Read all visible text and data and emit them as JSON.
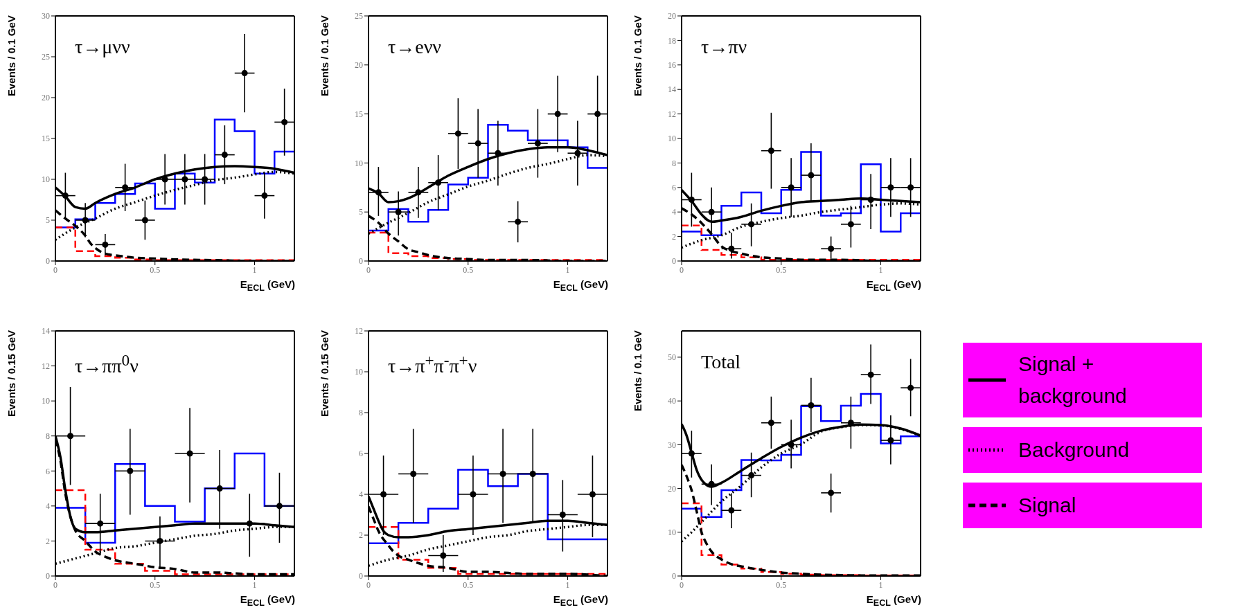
{
  "chart_data": [
    {
      "type": "histogram",
      "ylabel": "Events / 0.1 GeV",
      "xlabel": "E$_{ECL}$ (GeV)",
      "annotations": [
        "τ→μνν"
      ],
      "xlim": [
        0,
        1.2
      ],
      "xticks": [
        0,
        0.5,
        1
      ],
      "ylim": [
        0,
        30
      ],
      "yticks": [
        0,
        5,
        10,
        15,
        20,
        25,
        30
      ],
      "series": [
        {
          "color": "#0000ff",
          "bins": [
            0,
            0.1,
            0.2,
            0.3,
            0.4,
            0.5,
            0.6,
            0.7,
            0.8,
            0.9,
            1.0,
            1.1,
            1.2
          ],
          "values": [
            4.1,
            5.1,
            7.1,
            8.2,
            9.5,
            6.4,
            10.7,
            9.6,
            17.3,
            15.9,
            10.7,
            13.4
          ]
        },
        {
          "type": "histogram",
          "color": "#ff0000",
          "line_style": "dashed",
          "bins": [
            0,
            0.1,
            0.2,
            0.3,
            0.4,
            0.5,
            0.6,
            0.7,
            0.8,
            0.9,
            1.0,
            1.1,
            1.2
          ],
          "values": [
            4.1,
            1.2,
            0.6,
            0.4,
            0.2,
            0.1,
            0.1,
            0.1,
            0.1,
            0.1,
            0.1,
            0.1
          ]
        },
        {
          "type": "line",
          "color": "#000000",
          "line_style": "solid",
          "x": [
            0,
            0.05,
            0.1,
            0.15,
            0.2,
            0.3,
            0.4,
            0.5,
            0.6,
            0.7,
            0.8,
            0.9,
            1.0,
            1.1,
            1.2
          ],
          "values": [
            9.0,
            7.9,
            6.6,
            6.4,
            7.1,
            8.2,
            9.0,
            10.0,
            10.7,
            11.2,
            11.5,
            11.6,
            11.5,
            11.3,
            10.8
          ]
        },
        {
          "type": "line",
          "color": "#000000",
          "line_style": "dotted",
          "x": [
            0,
            0.1,
            0.2,
            0.3,
            0.4,
            0.5,
            0.6,
            0.7,
            0.8,
            0.9,
            1.0,
            1.1,
            1.2
          ],
          "values": [
            2.6,
            4.1,
            5.2,
            6.4,
            7.2,
            8.0,
            8.7,
            9.3,
            9.9,
            10.2,
            10.6,
            10.9,
            10.7
          ]
        },
        {
          "type": "line",
          "color": "#000000",
          "line_style": "dashed",
          "x": [
            0,
            0.05,
            0.1,
            0.15,
            0.175,
            0.2,
            0.25,
            0.3,
            0.4,
            0.5,
            0.6,
            0.8,
            1.0,
            1.2
          ],
          "values": [
            6.2,
            5.2,
            4.3,
            3.1,
            2.2,
            1.6,
            0.9,
            0.7,
            0.4,
            0.3,
            0.2,
            0.1,
            0,
            0
          ]
        },
        {
          "type": "scatter",
          "color": "#000000",
          "marker": "circle",
          "x": [
            0.05,
            0.15,
            0.25,
            0.35,
            0.45,
            0.55,
            0.65,
            0.75,
            0.85,
            0.95,
            1.05,
            1.15
          ],
          "values": [
            8,
            5,
            2,
            9,
            5,
            10,
            10,
            10,
            13,
            23,
            8,
            17
          ],
          "errors": [
            [
              5.2,
              10.8
            ],
            [
              2.9,
              7.1
            ],
            [
              0.7,
              3.3
            ],
            [
              6.1,
              11.9
            ],
            [
              2.6,
              7.4
            ],
            [
              6.9,
              13.1
            ],
            [
              6.9,
              13.1
            ],
            [
              6.9,
              13.1
            ],
            [
              9.4,
              16.6
            ],
            [
              18.2,
              27.8
            ],
            [
              5.2,
              10.8
            ],
            [
              12.9,
              21.1
            ]
          ],
          "xerrors": [
            0.05,
            0.05,
            0.05,
            0.05,
            0.05,
            0.05,
            0.05,
            0.05,
            0.05,
            0.05,
            0.05,
            0.05
          ]
        }
      ]
    },
    {
      "type": "histogram",
      "ylabel": "Events / 0.1 GeV",
      "xlabel": "E$_{ECL}$ (GeV)",
      "annotations": [
        "τ→eνν"
      ],
      "xlim": [
        0,
        1.2
      ],
      "xticks": [
        0,
        0.5,
        1
      ],
      "ylim": [
        0,
        25
      ],
      "yticks": [
        0,
        5,
        10,
        15,
        20,
        25
      ],
      "series": [
        {
          "color": "#0000ff",
          "bins": [
            0,
            0.1,
            0.2,
            0.3,
            0.4,
            0.5,
            0.6,
            0.7,
            0.8,
            0.9,
            1.0,
            1.1,
            1.2
          ],
          "values": [
            3.1,
            5.3,
            4.0,
            5.2,
            7.8,
            8.5,
            13.9,
            13.3,
            12.3,
            12.3,
            11.6,
            9.5
          ]
        },
        {
          "type": "histogram",
          "color": "#ff0000",
          "line_style": "dashed",
          "bins": [
            0,
            0.1,
            0.2,
            0.3,
            0.4,
            0.5,
            0.6,
            0.7,
            0.8,
            0.9,
            1.0,
            1.1,
            1.2
          ],
          "values": [
            2.9,
            0.8,
            0.5,
            0.3,
            0.2,
            0.1,
            0.1,
            0.1,
            0.1,
            0.1,
            0.1,
            0.1
          ]
        },
        {
          "type": "line",
          "color": "#000000",
          "line_style": "solid",
          "x": [
            0,
            0.05,
            0.1,
            0.15,
            0.2,
            0.3,
            0.4,
            0.5,
            0.6,
            0.7,
            0.8,
            0.9,
            1.0,
            1.1,
            1.2
          ],
          "values": [
            7.4,
            6.9,
            6.0,
            6.1,
            6.4,
            7.5,
            8.7,
            9.6,
            10.4,
            11.0,
            11.4,
            11.6,
            11.6,
            11.3,
            10.8
          ]
        },
        {
          "type": "line",
          "color": "#000000",
          "line_style": "dotted",
          "x": [
            0,
            0.1,
            0.2,
            0.3,
            0.4,
            0.5,
            0.6,
            0.7,
            0.8,
            0.9,
            1.0,
            1.1,
            1.2
          ],
          "values": [
            2.8,
            3.9,
            4.9,
            6.0,
            6.8,
            7.6,
            8.2,
            8.9,
            9.5,
            9.9,
            10.4,
            10.8,
            10.7
          ]
        },
        {
          "type": "line",
          "color": "#000000",
          "line_style": "dashed",
          "x": [
            0,
            0.05,
            0.1,
            0.15,
            0.2,
            0.25,
            0.3,
            0.4,
            0.5,
            0.6,
            0.8,
            1.0,
            1.2
          ],
          "values": [
            4.6,
            3.9,
            2.8,
            2.0,
            1.2,
            0.9,
            0.6,
            0.3,
            0.2,
            0.1,
            0.1,
            0,
            0
          ]
        },
        {
          "type": "scatter",
          "color": "#000000",
          "marker": "circle",
          "x": [
            0.05,
            0.15,
            0.25,
            0.35,
            0.45,
            0.55,
            0.65,
            0.75,
            0.85,
            0.95,
            1.05,
            1.15
          ],
          "values": [
            7,
            5,
            7,
            8,
            13,
            12,
            11,
            4,
            12,
            15,
            11,
            15
          ],
          "errors": [
            [
              4.6,
              9.6
            ],
            [
              2.6,
              7.1
            ],
            [
              4.4,
              9.6
            ],
            [
              5.2,
              10.8
            ],
            [
              9.4,
              16.6
            ],
            [
              8.5,
              15.5
            ],
            [
              7.7,
              14.3
            ],
            [
              1.9,
              6.1
            ],
            [
              8.5,
              15.5
            ],
            [
              11.1,
              18.9
            ],
            [
              7.7,
              14.3
            ],
            [
              11.1,
              18.9
            ]
          ],
          "xerrors": [
            0.05,
            0.05,
            0.05,
            0.05,
            0.05,
            0.05,
            0.05,
            0.05,
            0.05,
            0.05,
            0.05,
            0.05
          ]
        }
      ]
    },
    {
      "type": "histogram",
      "ylabel": "Events / 0.1 GeV",
      "xlabel": "E$_{ECL}$ (GeV)",
      "annotations": [
        "τ→πν"
      ],
      "xlim": [
        0,
        1.2
      ],
      "xticks": [
        0,
        0.5,
        1
      ],
      "ylim": [
        0,
        20
      ],
      "yticks": [
        0,
        2,
        4,
        6,
        8,
        10,
        12,
        14,
        16,
        18,
        20
      ],
      "series": [
        {
          "color": "#0000ff",
          "bins": [
            0,
            0.1,
            0.2,
            0.3,
            0.4,
            0.5,
            0.6,
            0.7,
            0.8,
            0.9,
            1.0,
            1.1,
            1.2
          ],
          "values": [
            2.4,
            2.1,
            4.5,
            5.6,
            3.9,
            5.8,
            8.9,
            3.7,
            3.9,
            7.9,
            2.4,
            3.9
          ]
        },
        {
          "type": "histogram",
          "color": "#ff0000",
          "line_style": "dashed",
          "bins": [
            0,
            0.1,
            0.2,
            0.3,
            0.4,
            0.5,
            0.6,
            0.7,
            0.8,
            0.9,
            1.0,
            1.1,
            1.2
          ],
          "values": [
            2.9,
            0.9,
            0.5,
            0.3,
            0.1,
            0.1,
            0.1,
            0.1,
            0.1,
            0.1,
            0.1,
            0.1
          ]
        },
        {
          "type": "line",
          "color": "#000000",
          "line_style": "solid",
          "x": [
            0,
            0.05,
            0.1,
            0.15,
            0.2,
            0.3,
            0.4,
            0.5,
            0.6,
            0.7,
            0.8,
            0.9,
            1.0,
            1.1,
            1.2
          ],
          "values": [
            5.8,
            4.9,
            3.8,
            3.2,
            3.3,
            3.6,
            4.1,
            4.5,
            4.8,
            4.9,
            5.0,
            5.1,
            5.0,
            4.9,
            4.8
          ]
        },
        {
          "type": "line",
          "color": "#000000",
          "line_style": "dotted",
          "x": [
            0,
            0.1,
            0.2,
            0.3,
            0.4,
            0.5,
            0.6,
            0.7,
            0.8,
            0.9,
            1.0,
            1.1,
            1.2
          ],
          "values": [
            1.1,
            1.7,
            2.1,
            2.8,
            3.2,
            3.5,
            3.7,
            4.0,
            4.2,
            4.4,
            4.6,
            4.7,
            4.6
          ]
        },
        {
          "type": "line",
          "color": "#000000",
          "line_style": "dashed",
          "x": [
            0,
            0.05,
            0.1,
            0.15,
            0.2,
            0.25,
            0.3,
            0.4,
            0.5,
            0.6,
            0.8,
            1.0,
            1.2
          ],
          "values": [
            4.3,
            3.8,
            3.1,
            2.2,
            1.2,
            0.8,
            0.6,
            0.3,
            0.2,
            0.1,
            0.1,
            0,
            0
          ]
        },
        {
          "type": "scatter",
          "color": "#000000",
          "marker": "circle",
          "x": [
            0.05,
            0.15,
            0.25,
            0.35,
            0.45,
            0.55,
            0.65,
            0.75,
            0.85,
            0.95,
            1.05,
            1.15
          ],
          "values": [
            5,
            4,
            1,
            3,
            9,
            6,
            7,
            1,
            3,
            5,
            6,
            6
          ],
          "errors": [
            [
              2.8,
              7.2
            ],
            [
              2.1,
              6.0
            ],
            [
              0.2,
              2.3
            ],
            [
              1.2,
              4.7
            ],
            [
              5.9,
              12.1
            ],
            [
              3.6,
              8.4
            ],
            [
              4.9,
              9.6
            ],
            [
              0.2,
              2.0
            ],
            [
              1.1,
              4.5
            ],
            [
              2.6,
              7.1
            ],
            [
              3.6,
              8.4
            ],
            [
              3.6,
              8.4
            ]
          ],
          "xerrors": [
            0.05,
            0.05,
            0.05,
            0.05,
            0.05,
            0.05,
            0.05,
            0.05,
            0.05,
            0.05,
            0.05,
            0.05
          ]
        }
      ]
    },
    {
      "type": "histogram",
      "ylabel": "Events / 0.15 GeV",
      "xlabel": "E$_{ECL}$ (GeV)",
      "annotations": [
        "τ→ππ$^{0}$ν"
      ],
      "xlim": [
        0,
        1.2
      ],
      "xticks": [
        0,
        0.5,
        1
      ],
      "ylim": [
        0,
        14
      ],
      "yticks": [
        0,
        2,
        4,
        6,
        8,
        10,
        12,
        14
      ],
      "series": [
        {
          "color": "#0000ff",
          "bins": [
            0,
            0.15,
            0.3,
            0.45,
            0.6,
            0.75,
            0.9,
            1.05,
            1.2
          ],
          "values": [
            3.9,
            1.9,
            6.4,
            4.0,
            3.1,
            5.0,
            7.0,
            4.0
          ]
        },
        {
          "type": "histogram",
          "color": "#ff0000",
          "line_style": "dashed",
          "bins": [
            0,
            0.15,
            0.3,
            0.45,
            0.6,
            0.75,
            0.9,
            1.05,
            1.2
          ],
          "values": [
            4.9,
            1.5,
            0.7,
            0.3,
            0.1,
            0.1,
            0.1,
            0.1
          ]
        },
        {
          "type": "line",
          "color": "#000000",
          "line_style": "solid",
          "x": [
            0,
            0.025,
            0.05,
            0.075,
            0.1,
            0.15,
            0.2,
            0.3,
            0.4,
            0.5,
            0.6,
            0.7,
            0.8,
            0.9,
            1.0,
            1.1,
            1.2
          ],
          "values": [
            8.0,
            6.8,
            4.9,
            3.4,
            2.7,
            2.5,
            2.5,
            2.6,
            2.7,
            2.8,
            2.9,
            3.0,
            3.0,
            3.0,
            3.0,
            2.9,
            2.8
          ]
        },
        {
          "type": "line",
          "color": "#000000",
          "line_style": "dotted",
          "x": [
            0,
            0.1,
            0.2,
            0.3,
            0.4,
            0.5,
            0.6,
            0.7,
            0.8,
            0.9,
            1.0,
            1.1,
            1.2
          ],
          "values": [
            0.7,
            1.0,
            1.3,
            1.6,
            1.7,
            1.9,
            2.1,
            2.3,
            2.4,
            2.6,
            2.7,
            2.8,
            2.8
          ]
        },
        {
          "type": "line",
          "color": "#000000",
          "line_style": "dashed",
          "x": [
            0,
            0.025,
            0.05,
            0.075,
            0.1,
            0.15,
            0.2,
            0.25,
            0.3,
            0.4,
            0.5,
            0.6,
            0.7,
            0.8,
            1.0,
            1.2
          ],
          "values": [
            7.8,
            6.6,
            4.7,
            3.4,
            2.6,
            2.0,
            1.4,
            1.1,
            0.9,
            0.7,
            0.5,
            0.4,
            0.2,
            0.2,
            0.1,
            0.1
          ]
        },
        {
          "type": "scatter",
          "color": "#000000",
          "marker": "circle",
          "x": [
            0.075,
            0.225,
            0.375,
            0.525,
            0.675,
            0.825,
            0.975,
            1.125
          ],
          "values": [
            8,
            3,
            6,
            2,
            7,
            5,
            3,
            4
          ],
          "errors": [
            [
              5.2,
              10.8
            ],
            [
              1.2,
              4.7
            ],
            [
              3.5,
              8.4
            ],
            [
              0.4,
              3.4
            ],
            [
              4.2,
              9.6
            ],
            [
              2.7,
              7.2
            ],
            [
              1.1,
              4.7
            ],
            [
              1.9,
              5.9
            ]
          ],
          "xerrors": [
            0.075,
            0.075,
            0.075,
            0.075,
            0.075,
            0.075,
            0.075,
            0.075
          ]
        }
      ]
    },
    {
      "type": "histogram",
      "ylabel": "Events / 0.15 GeV",
      "xlabel": "E$_{ECL}$ (GeV)",
      "annotations": [
        "τ→π$^{+}$π$^{-}$π$^{+}$ν"
      ],
      "xlim": [
        0,
        1.2
      ],
      "xticks": [
        0,
        0.5,
        1
      ],
      "ylim": [
        0,
        12
      ],
      "yticks": [
        0,
        2,
        4,
        6,
        8,
        10,
        12
      ],
      "series": [
        {
          "color": "#0000ff",
          "bins": [
            0,
            0.15,
            0.3,
            0.45,
            0.6,
            0.75,
            0.9,
            1.05,
            1.2
          ],
          "values": [
            1.6,
            2.6,
            3.3,
            5.2,
            4.4,
            5.0,
            1.8,
            1.8
          ]
        },
        {
          "type": "histogram",
          "color": "#ff0000",
          "line_style": "dashed",
          "bins": [
            0,
            0.15,
            0.3,
            0.45,
            0.6,
            0.75,
            0.9,
            1.05,
            1.2
          ],
          "values": [
            2.4,
            0.8,
            0.4,
            0.1,
            0.1,
            0.1,
            0.1,
            0.1
          ]
        },
        {
          "type": "line",
          "color": "#000000",
          "line_style": "solid",
          "x": [
            0,
            0.025,
            0.05,
            0.075,
            0.1,
            0.15,
            0.2,
            0.3,
            0.4,
            0.5,
            0.6,
            0.7,
            0.8,
            0.9,
            1.0,
            1.1,
            1.2
          ],
          "values": [
            3.9,
            3.3,
            2.7,
            2.2,
            2.0,
            1.9,
            1.9,
            2.0,
            2.2,
            2.3,
            2.4,
            2.5,
            2.6,
            2.7,
            2.7,
            2.6,
            2.5
          ]
        },
        {
          "type": "line",
          "color": "#000000",
          "line_style": "dotted",
          "x": [
            0,
            0.1,
            0.2,
            0.3,
            0.4,
            0.5,
            0.6,
            0.7,
            0.8,
            0.9,
            1.0,
            1.1,
            1.2
          ],
          "values": [
            0.5,
            0.8,
            1.0,
            1.3,
            1.5,
            1.7,
            1.9,
            2.0,
            2.2,
            2.3,
            2.4,
            2.5,
            2.5
          ]
        },
        {
          "type": "line",
          "color": "#000000",
          "line_style": "dashed",
          "x": [
            0,
            0.025,
            0.05,
            0.1,
            0.125,
            0.15,
            0.2,
            0.3,
            0.4,
            0.5,
            0.6,
            0.8,
            1.0,
            1.2
          ],
          "values": [
            3.4,
            2.8,
            2.2,
            1.5,
            1.2,
            1.0,
            0.8,
            0.5,
            0.4,
            0.2,
            0.2,
            0.1,
            0.1,
            0
          ]
        },
        {
          "type": "scatter",
          "color": "#000000",
          "marker": "circle",
          "x": [
            0.075,
            0.225,
            0.375,
            0.525,
            0.675,
            0.825,
            0.975,
            1.125
          ],
          "values": [
            4,
            5,
            1,
            4,
            5,
            5,
            3,
            4
          ],
          "errors": [
            [
              2.0,
              5.9
            ],
            [
              2.6,
              7.2
            ],
            [
              0.2,
              2.0
            ],
            [
              2.0,
              5.9
            ],
            [
              2.6,
              7.2
            ],
            [
              2.6,
              7.2
            ],
            [
              1.2,
              4.7
            ],
            [
              1.9,
              5.9
            ]
          ],
          "xerrors": [
            0.075,
            0.075,
            0.075,
            0.075,
            0.075,
            0.075,
            0.075,
            0.075
          ]
        }
      ]
    },
    {
      "type": "histogram",
      "ylabel": "Events / 0.1 GeV",
      "xlabel": "E$_{ECL}$ (GeV)",
      "annotations": [
        "Total"
      ],
      "xlim": [
        0,
        1.2
      ],
      "xticks": [
        0,
        0.5,
        1
      ],
      "ylim": [
        0,
        56
      ],
      "yticks": [
        0,
        10,
        20,
        30,
        40,
        50
      ],
      "legend": "right",
      "series": [
        {
          "color": "#0000ff",
          "bins": [
            0,
            0.1,
            0.2,
            0.3,
            0.4,
            0.5,
            0.6,
            0.7,
            0.8,
            0.9,
            1.0,
            1.1,
            1.2
          ],
          "values": [
            15.4,
            13.5,
            19.6,
            26.5,
            26.4,
            27.7,
            38.8,
            35.4,
            38.9,
            41.6,
            30.3,
            31.9
          ]
        },
        {
          "type": "histogram",
          "color": "#ff0000",
          "line_style": "dashed",
          "bins": [
            0,
            0.1,
            0.2,
            0.3,
            0.4,
            0.5,
            0.6,
            0.7,
            0.8,
            0.9,
            1.0,
            1.1,
            1.2
          ],
          "values": [
            16.6,
            4.8,
            2.6,
            1.7,
            0.9,
            0.5,
            0.3,
            0.2,
            0.2,
            0.1,
            0.1,
            0.1
          ]
        },
        {
          "type": "line",
          "name": "Signal + background",
          "color": "#000000",
          "line_style": "solid",
          "x": [
            0,
            0.025,
            0.05,
            0.075,
            0.1,
            0.15,
            0.2,
            0.3,
            0.4,
            0.5,
            0.6,
            0.7,
            0.8,
            0.9,
            1.0,
            1.1,
            1.2
          ],
          "values": [
            34.7,
            32.1,
            28.2,
            24.3,
            22.0,
            20.4,
            21.3,
            24.1,
            26.9,
            29.5,
            31.6,
            33.2,
            34.1,
            34.6,
            34.5,
            33.7,
            32.1
          ]
        },
        {
          "type": "line",
          "name": "Background",
          "color": "#000000",
          "line_style": "dotted",
          "x": [
            0,
            0.05,
            0.1,
            0.15,
            0.2,
            0.3,
            0.4,
            0.5,
            0.6,
            0.7,
            0.8,
            0.9,
            1.0,
            1.1,
            1.2
          ],
          "values": [
            7.9,
            10.0,
            12.3,
            14.7,
            17.0,
            20.7,
            24.8,
            28.0,
            30.1,
            33.0,
            34.0,
            34.5,
            34.4,
            33.6,
            32.0
          ]
        },
        {
          "type": "line",
          "name": "Signal",
          "color": "#000000",
          "line_style": "dashed",
          "x": [
            0,
            0.025,
            0.05,
            0.075,
            0.1,
            0.125,
            0.15,
            0.2,
            0.25,
            0.3,
            0.4,
            0.5,
            0.6,
            0.8,
            1.0,
            1.2
          ],
          "values": [
            25.4,
            22.8,
            19.6,
            14.9,
            10.0,
            7.4,
            5.6,
            3.8,
            2.7,
            2.2,
            1.4,
            0.8,
            0.5,
            0.2,
            0.1,
            0.1
          ]
        },
        {
          "type": "scatter",
          "color": "#000000",
          "marker": "circle",
          "x": [
            0.05,
            0.15,
            0.25,
            0.35,
            0.45,
            0.55,
            0.65,
            0.75,
            0.85,
            0.95,
            1.05,
            1.15
          ],
          "values": [
            28,
            21,
            15,
            23,
            35,
            30,
            39,
            19,
            35,
            46,
            31,
            43
          ],
          "errors": [
            [
              22.5,
              33.2
            ],
            [
              16.2,
              25.5
            ],
            [
              10.9,
              18.9
            ],
            [
              18.0,
              28.2
            ],
            [
              29.1,
              41.0
            ],
            [
              24.6,
              35.7
            ],
            [
              32.9,
              45.3
            ],
            [
              14.5,
              23.4
            ],
            [
              29.1,
              41.0
            ],
            [
              39.3,
              52.9
            ],
            [
              25.5,
              36.7
            ],
            [
              36.5,
              49.6
            ]
          ],
          "xerrors": [
            0.05,
            0.05,
            0.05,
            0.05,
            0.05,
            0.05,
            0.05,
            0.05,
            0.05,
            0.05,
            0.05,
            0.05
          ]
        }
      ]
    }
  ]
}
